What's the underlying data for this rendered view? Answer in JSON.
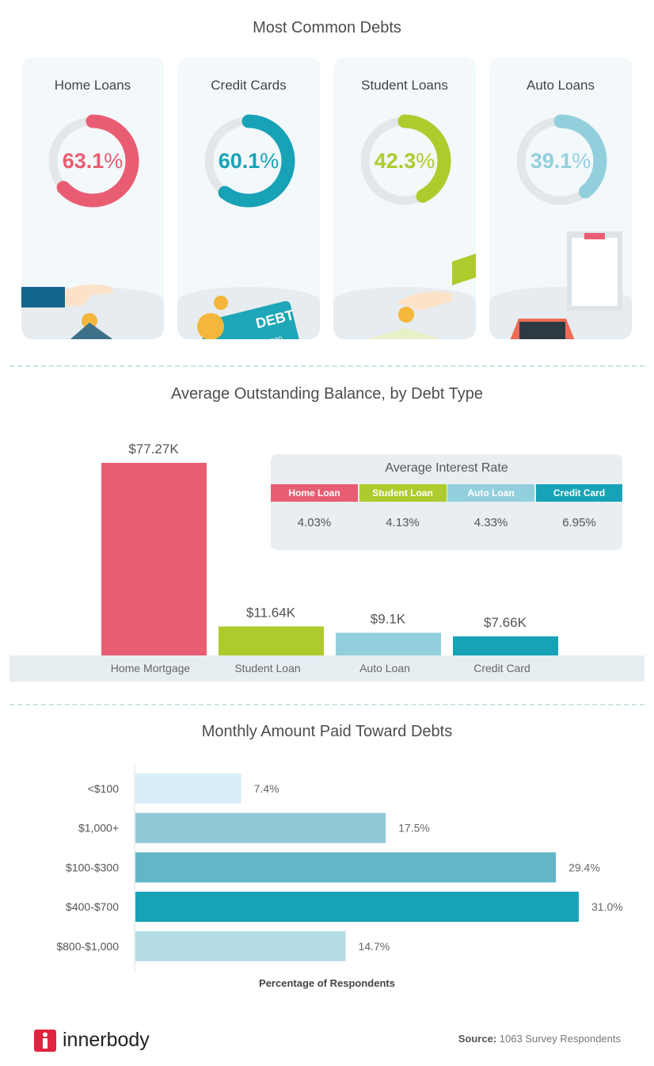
{
  "sections": {
    "common_title": "Most Common Debts",
    "balance_title": "Average Outstanding Balance, by Debt Type",
    "monthly_title": "Monthly Amount Paid Toward Debts"
  },
  "colors": {
    "home": "#e95d72",
    "credit": "#17a2b6",
    "student": "#aecb2d",
    "auto": "#92cfdc",
    "track": "#e3e7e9"
  },
  "chart_data": [
    {
      "type": "donut",
      "title": "Most Common Debts",
      "categories": [
        "Home Loans",
        "Credit Cards",
        "Student Loans",
        "Auto Loans"
      ],
      "values": [
        63.1,
        60.1,
        42.3,
        39.1
      ],
      "labels": [
        "63.1",
        "60.1",
        "42.3",
        "39.1"
      ],
      "unit": "%",
      "colors": [
        "#e95d72",
        "#17a2b6",
        "#aecb2d",
        "#92cfdc"
      ],
      "icons": [
        "house-piggy-bank-icon",
        "debt-credit-card-icon",
        "graduation-cap-coin-icon",
        "car-loan-approved-icon"
      ]
    },
    {
      "type": "bar",
      "title": "Average Outstanding Balance, by Debt Type",
      "categories": [
        "Home Mortgage",
        "Student Loan",
        "Auto Loan",
        "Credit Card"
      ],
      "values": [
        77.27,
        11.64,
        9.1,
        7.66
      ],
      "data_labels": [
        "$77.27K",
        "$11.64K",
        "$9.1K",
        "$7.66K"
      ],
      "unit": "$K",
      "colors": [
        "#e95d72",
        "#aecb2d",
        "#92cfdc",
        "#17a2b6"
      ],
      "ylim": [
        0,
        77.27
      ]
    },
    {
      "type": "table",
      "title": "Average Interest Rate",
      "columns": [
        "Home Loan",
        "Student Loan",
        "Auto Loan",
        "Credit Card"
      ],
      "values": [
        "4.03%",
        "4.13%",
        "4.33%",
        "6.95%"
      ],
      "colors": [
        "#e95d72",
        "#aecb2d",
        "#92cfdc",
        "#17a2b6"
      ]
    },
    {
      "type": "bar",
      "orientation": "horizontal",
      "title": "Monthly Amount Paid Toward Debts",
      "categories": [
        "<$100",
        "$1,000+",
        "$100-$300",
        "$400-$700",
        "$800-$1,000"
      ],
      "values": [
        7.4,
        17.5,
        29.4,
        31.0,
        14.7
      ],
      "data_labels": [
        "7.4%",
        "17.5%",
        "29.4%",
        "31.0%",
        "14.7%"
      ],
      "xlabel": "Percentage of Respondents",
      "colors": [
        "#daeef7",
        "#92c9d6",
        "#62b6c7",
        "#16a3b5",
        "#b5dce5"
      ]
    }
  ],
  "footer": {
    "brand": "innerbody",
    "source_label": "Source:",
    "source_text": "1063 Survey Respondents"
  }
}
